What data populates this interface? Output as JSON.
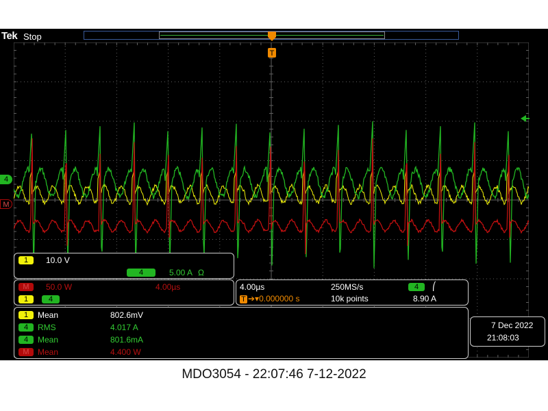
{
  "header": {
    "brand": "Tek",
    "run_state": "Stop"
  },
  "trigger_marker": "T",
  "markers": {
    "ch4_ground": "4",
    "math": "M"
  },
  "ch1_box": {
    "badge": "1",
    "scale": "10.0 V",
    "ch4_badge": "4",
    "ch4_scale": "5.00 A",
    "ch4_coupling": "Ω"
  },
  "math_box": {
    "badge": "M",
    "scale": "50.0 W",
    "time": "4.00µs",
    "src1": "1",
    "src2": "4"
  },
  "timebase_box": {
    "time_div": "4.00µs",
    "sample_rate": "250MS/s",
    "trig_badge": "4",
    "trig_slope": "⎛",
    "trig_symbol": "T",
    "trig_pos": "➔▾0.000000 s",
    "record_len": "10k points",
    "trig_level": "8.90 A"
  },
  "measurements": [
    {
      "badge": "1",
      "kind": "y",
      "label": "Mean",
      "value": "802.6mV"
    },
    {
      "badge": "4",
      "kind": "g",
      "label": "RMS",
      "value": "4.017 A"
    },
    {
      "badge": "4",
      "kind": "g",
      "label": "Mean",
      "value": "801.6mA"
    },
    {
      "badge": "M",
      "kind": "r",
      "label": "Mean",
      "value": "4.400 W"
    }
  ],
  "datetime": {
    "date": "7 Dec  2022",
    "time": "21:08:03"
  },
  "caption": "MDO3054 - 22:07:46   7-12-2022",
  "colors": {
    "ch1": "#f2f20a",
    "ch4": "#22b522",
    "math": "#c81010",
    "grid": "#606060"
  }
}
